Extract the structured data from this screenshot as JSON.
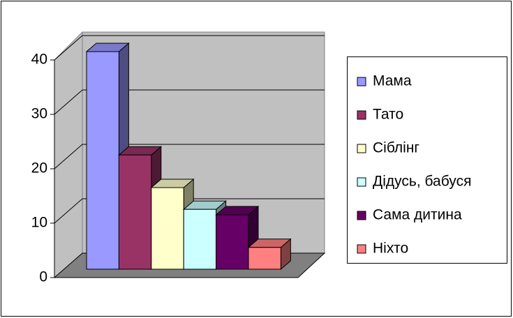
{
  "chart_data": {
    "type": "bar3d",
    "series": [
      {
        "name": "Мама",
        "color": "#9999ff",
        "values": [
          40
        ]
      },
      {
        "name": "Тато",
        "color": "#993366",
        "values": [
          21
        ]
      },
      {
        "name": "Сіблінг",
        "color": "#ffffcc",
        "values": [
          15
        ]
      },
      {
        "name": "Дідусь, бабуся",
        "color": "#ccffff",
        "values": [
          11
        ]
      },
      {
        "name": "Сама дитина",
        "color": "#660066",
        "values": [
          10
        ]
      },
      {
        "name": "Ніхто",
        "color": "#ff8080",
        "values": [
          4
        ]
      }
    ],
    "ylim": [
      0,
      40
    ],
    "yticks": [
      0,
      10,
      20,
      30,
      40
    ],
    "grid": true,
    "legend": "right"
  }
}
